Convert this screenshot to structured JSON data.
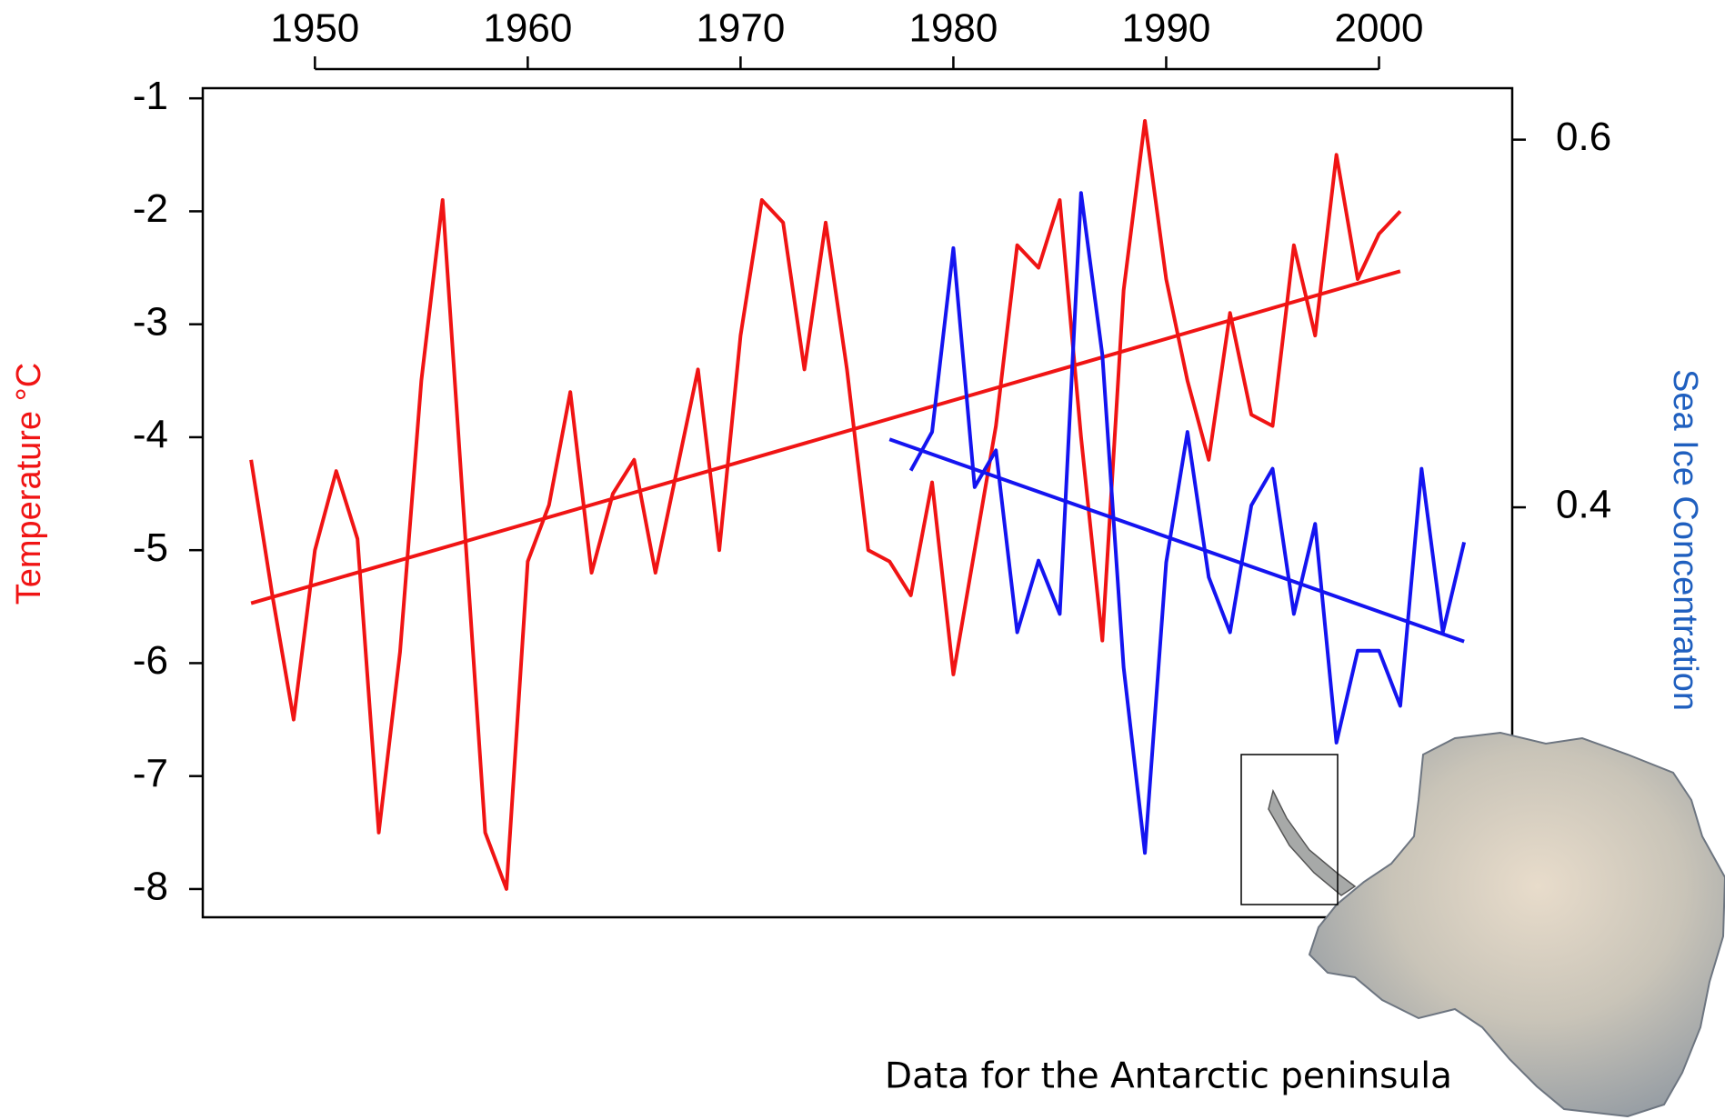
{
  "chart_data": {
    "type": "line",
    "ylabel": "Temperature °C",
    "y2label": "Sea Ice Concentration",
    "annotation": "Data for the Antarctic peninsula",
    "xlim": [
      1944.73,
      2006.26
    ],
    "xticks": [
      1950,
      1960,
      1970,
      1980,
      1990,
      2000
    ],
    "ylim": [
      -8.25,
      -0.91
    ],
    "yticks": [
      -1,
      -2,
      -3,
      -4,
      -5,
      -6,
      -7,
      -8
    ],
    "y2lim": [
      0.177,
      0.628
    ],
    "y2ticks": [
      0.4,
      0.6
    ],
    "series": [
      {
        "color": "#f01414",
        "x": [
          1947,
          1948,
          1949,
          1950,
          1951,
          1952,
          1953,
          1954,
          1955,
          1956,
          1957,
          1958,
          1959,
          1960,
          1961,
          1962,
          1963,
          1964,
          1965,
          1966,
          1967,
          1968,
          1969,
          1970,
          1971,
          1972,
          1973,
          1974,
          1975,
          1976,
          1977,
          1978,
          1979,
          1980,
          1981,
          1982,
          1983,
          1984,
          1985,
          1986,
          1987,
          1988,
          1989,
          1990,
          1991,
          1992,
          1993,
          1994,
          1995,
          1996,
          1997,
          1998,
          1999,
          2000,
          2001
        ],
        "values": [
          -4.2,
          -5.4,
          -6.5,
          -5.0,
          -4.3,
          -4.9,
          -7.5,
          -5.9,
          -3.5,
          -1.9,
          -4.7,
          -7.5,
          -8.0,
          -5.1,
          -4.6,
          -3.6,
          -5.2,
          -4.5,
          -4.2,
          -5.2,
          -4.3,
          -3.4,
          -5.0,
          -3.1,
          -1.9,
          -2.1,
          -3.4,
          -2.1,
          -3.4,
          -5.0,
          -5.1,
          -5.4,
          -4.4,
          -6.1,
          -5.0,
          -3.9,
          -2.3,
          -2.5,
          -1.9,
          -4.0,
          -5.8,
          -2.7,
          -1.2,
          -2.6,
          -3.5,
          -4.2,
          -2.9,
          -3.8,
          -3.9,
          -2.3,
          -3.1,
          -1.5,
          -2.6,
          -2.2,
          -2.0
        ]
      },
      {
        "color": "#f01414",
        "x": [
          1947,
          2001
        ],
        "values": [
          -5.47,
          -2.53
        ]
      },
      {
        "color": "#1414f0",
        "axis": "y2",
        "x": [
          1978,
          1979,
          1980,
          1981,
          1982,
          1983,
          1984,
          1985,
          1986,
          1987,
          1988,
          1989,
          1990,
          1991,
          1992,
          1993,
          1994,
          1995,
          1996,
          1997,
          1998,
          1999,
          2000,
          2001,
          2002,
          2003,
          2004
        ],
        "values": [
          0.42,
          0.441,
          0.541,
          0.411,
          0.431,
          0.332,
          0.371,
          0.342,
          0.571,
          0.483,
          0.313,
          0.212,
          0.37,
          0.441,
          0.362,
          0.332,
          0.401,
          0.421,
          0.342,
          0.391,
          0.272,
          0.322,
          0.322,
          0.292,
          0.421,
          0.332,
          0.381
        ]
      },
      {
        "color": "#1414f0",
        "axis": "y2",
        "x": [
          1977,
          2004
        ],
        "values": [
          0.437,
          0.327
        ]
      }
    ]
  }
}
